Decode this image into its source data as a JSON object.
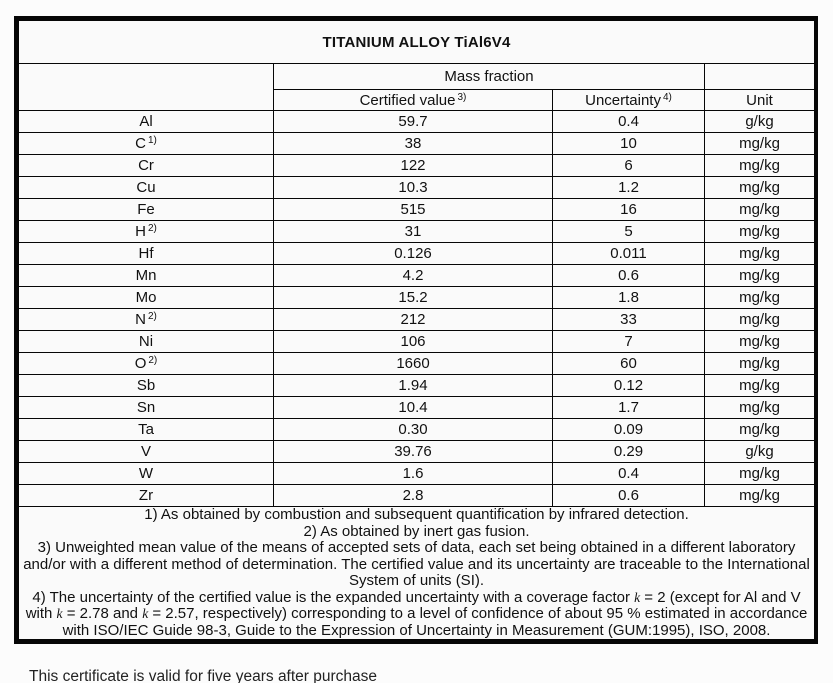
{
  "page": {
    "background": "#fcfcfc",
    "border_color": "#060606",
    "text_color": "#111111",
    "footer_note": "This certificate is valid for five years after purchase"
  },
  "table": {
    "title": "TITANIUM ALLOY TiAl6V4",
    "headers": {
      "mass_fraction": "Mass fraction",
      "certified_value": "Certified value",
      "certified_value_sup": "3)",
      "uncertainty": "Uncertainty",
      "uncertainty_sup": "4)",
      "unit": "Unit"
    },
    "rows": [
      {
        "element": "Al",
        "element_sup": "",
        "certified_value": "59.7",
        "uncertainty": "0.4",
        "unit": "g/kg"
      },
      {
        "element": "C",
        "element_sup": "1)",
        "certified_value": "38",
        "uncertainty": "10",
        "unit": "mg/kg"
      },
      {
        "element": "Cr",
        "element_sup": "",
        "certified_value": "122",
        "uncertainty": "6",
        "unit": "mg/kg"
      },
      {
        "element": "Cu",
        "element_sup": "",
        "certified_value": "10.3",
        "uncertainty": "1.2",
        "unit": "mg/kg"
      },
      {
        "element": "Fe",
        "element_sup": "",
        "certified_value": "515",
        "uncertainty": "16",
        "unit": "mg/kg"
      },
      {
        "element": "H",
        "element_sup": "2)",
        "certified_value": "31",
        "uncertainty": "5",
        "unit": "mg/kg"
      },
      {
        "element": "Hf",
        "element_sup": "",
        "certified_value": "0.126",
        "uncertainty": "0.011",
        "unit": "mg/kg"
      },
      {
        "element": "Mn",
        "element_sup": "",
        "certified_value": "4.2",
        "uncertainty": "0.6",
        "unit": "mg/kg"
      },
      {
        "element": "Mo",
        "element_sup": "",
        "certified_value": "15.2",
        "uncertainty": "1.8",
        "unit": "mg/kg"
      },
      {
        "element": "N",
        "element_sup": "2)",
        "certified_value": "212",
        "uncertainty": "33",
        "unit": "mg/kg"
      },
      {
        "element": "Ni",
        "element_sup": "",
        "certified_value": "106",
        "uncertainty": "7",
        "unit": "mg/kg"
      },
      {
        "element": "O",
        "element_sup": "2)",
        "certified_value": "1660",
        "uncertainty": "60",
        "unit": "mg/kg"
      },
      {
        "element": "Sb",
        "element_sup": "",
        "certified_value": "1.94",
        "uncertainty": "0.12",
        "unit": "mg/kg"
      },
      {
        "element": "Sn",
        "element_sup": "",
        "certified_value": "10.4",
        "uncertainty": "1.7",
        "unit": "mg/kg"
      },
      {
        "element": "Ta",
        "element_sup": "",
        "certified_value": "0.30",
        "uncertainty": "0.09",
        "unit": "mg/kg"
      },
      {
        "element": "V",
        "element_sup": "",
        "certified_value": "39.76",
        "uncertainty": "0.29",
        "unit": "g/kg"
      },
      {
        "element": "W",
        "element_sup": "",
        "certified_value": "1.6",
        "uncertainty": "0.4",
        "unit": "mg/kg"
      },
      {
        "element": "Zr",
        "element_sup": "",
        "certified_value": "2.8",
        "uncertainty": "0.6",
        "unit": "mg/kg"
      }
    ],
    "footnotes": {
      "f1": "1) As obtained by combustion and subsequent quantification by infrared detection.",
      "f2": "2) As obtained by inert gas fusion.",
      "f3": "3) Unweighted mean value of the means of accepted sets of data, each set being obtained in a different laboratory and/or with a different method of determination. The certified value and its uncertainty are traceable to the International System of units (SI).",
      "f4_parts": {
        "p1": "4) The uncertainty of the certified value is the expanded uncertainty with a coverage factor ",
        "k1": "k",
        "p2": " = 2 (except for Al and V with ",
        "k2": "k",
        "p3": " = 2.78 and ",
        "k3": "k",
        "p4": " = 2.57, respectively) corresponding to a level of confidence of about 95 % estimated in accordance with ISO/IEC Guide 98-3, Guide to the Expression of Uncertainty in Measurement (GUM:1995), ISO, 2008."
      }
    }
  }
}
